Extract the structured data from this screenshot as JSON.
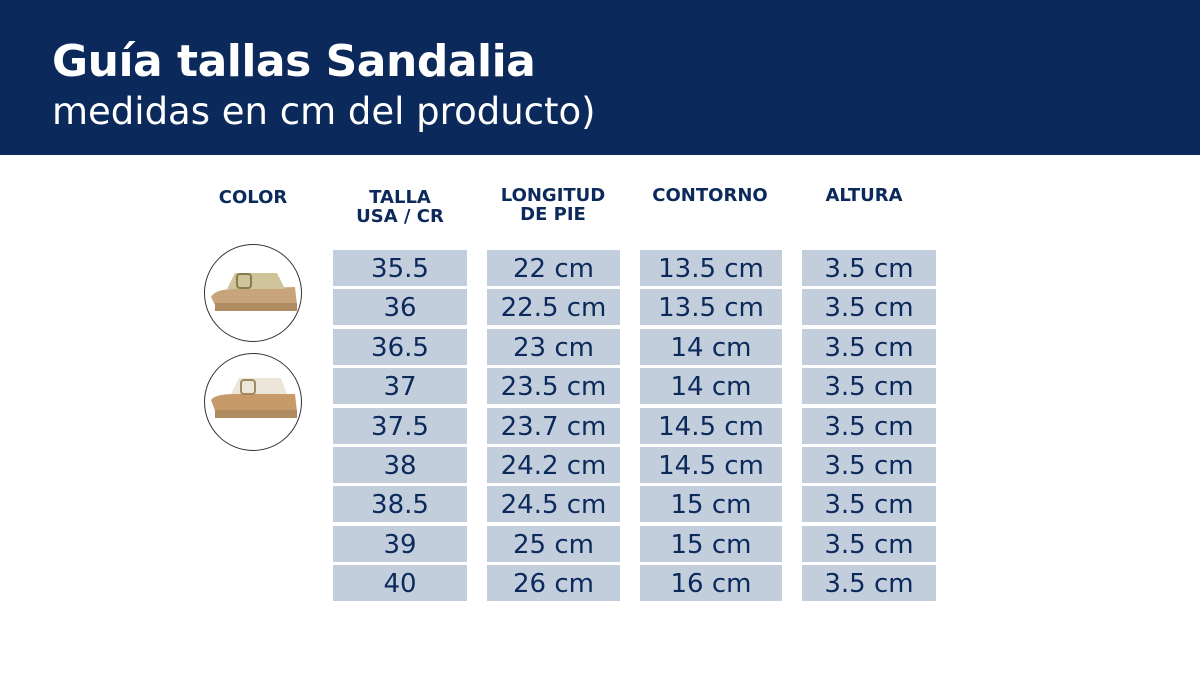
{
  "header": {
    "title": "Guía tallas Sandalia",
    "subtitle": "medidas en cm del producto)"
  },
  "columns": {
    "color": "COLOR",
    "talla": [
      "TALLA",
      "USA / CR"
    ],
    "longitud": [
      "LONGITUD",
      "DE PIE"
    ],
    "contorno": "CONTORNO",
    "altura": "ALTURA"
  },
  "colors": {
    "banner": "#0b2a5b",
    "cell": "#c3cedc"
  },
  "swatches": [
    "sandal-gold-thumbnail",
    "sandal-beige-thumbnail"
  ],
  "talla": [
    "35.5",
    "36",
    "36.5",
    "37",
    "37.5",
    "38",
    "38.5",
    "39",
    "40"
  ],
  "longitud": [
    "22 cm",
    "22.5 cm",
    "23 cm",
    "23.5 cm",
    "23.7 cm",
    "24.2 cm",
    "24.5 cm",
    "25 cm",
    "26 cm"
  ],
  "contorno": [
    "13.5 cm",
    "13.5 cm",
    "14 cm",
    "14 cm",
    "14.5 cm",
    "14.5 cm",
    "15 cm",
    "15 cm",
    "16 cm"
  ],
  "altura": [
    "3.5 cm",
    "3.5 cm",
    "3.5 cm",
    "3.5 cm",
    "3.5 cm",
    "3.5 cm",
    "3.5 cm",
    "3.5 cm",
    "3.5 cm"
  ]
}
